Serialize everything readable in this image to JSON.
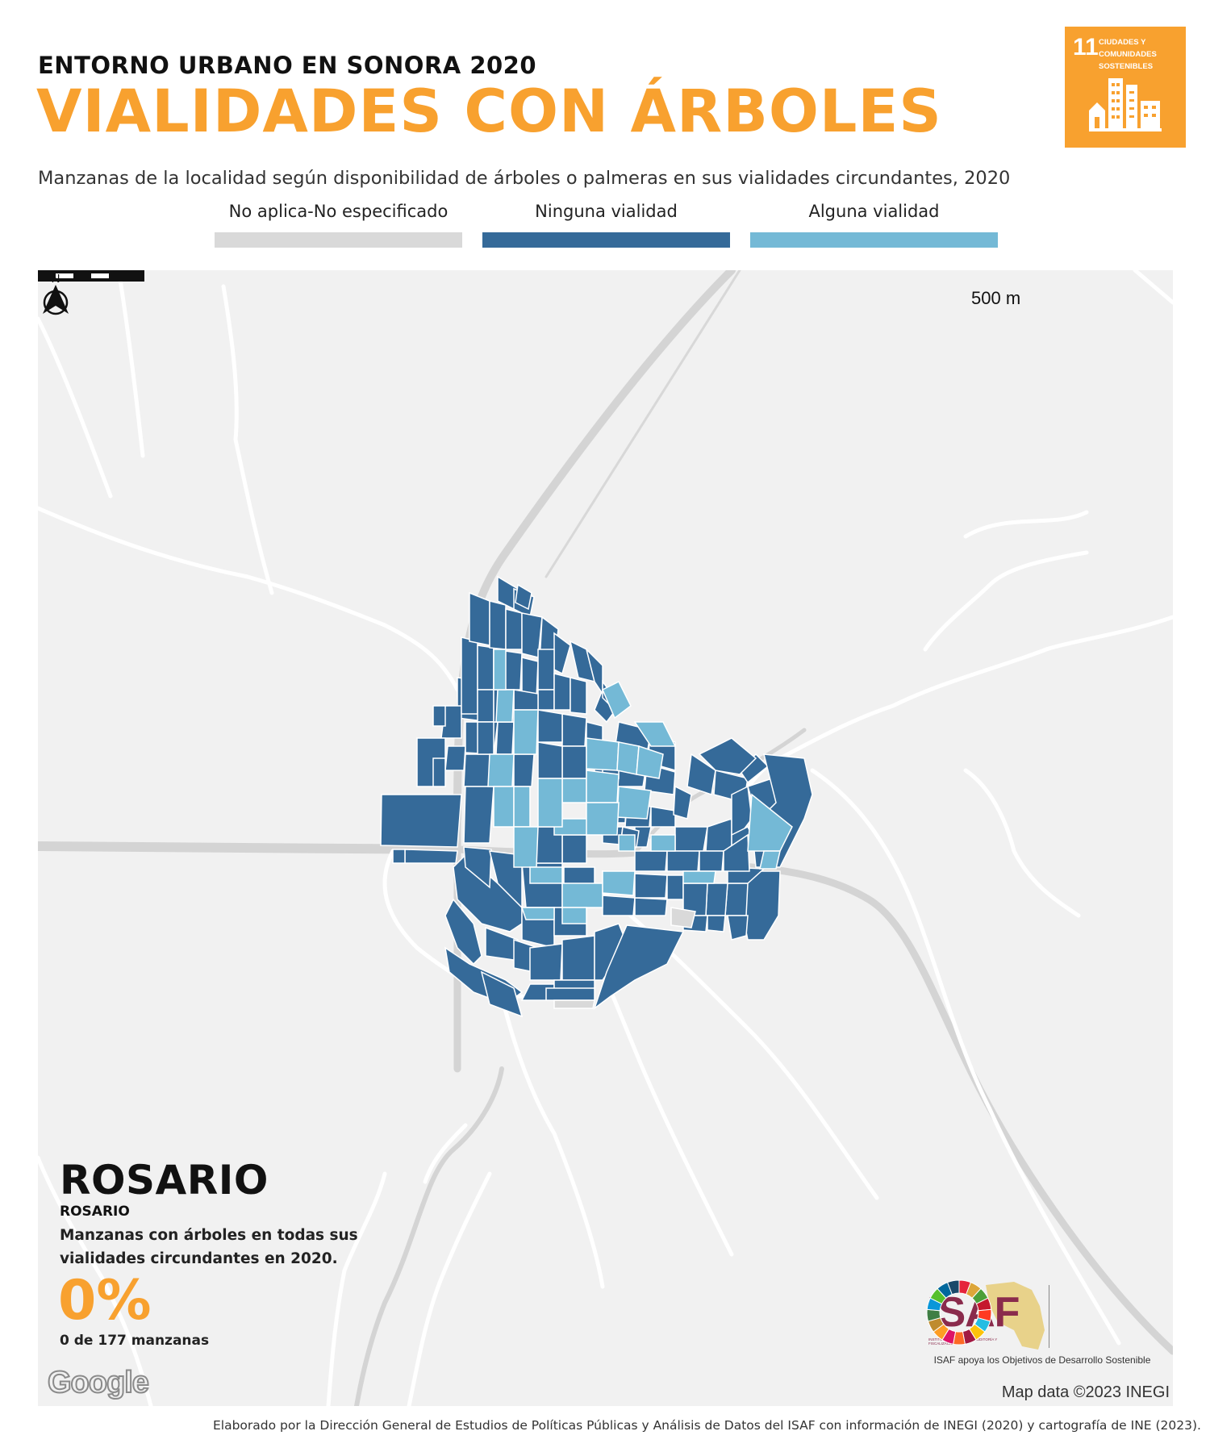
{
  "header": {
    "kicker": "ENTORNO URBANO EN SONORA 2020",
    "title": "VIALIDADES CON ÁRBOLES",
    "subtitle": "Manzanas de la localidad según disponibilidad de árboles o palmeras en sus vialidades circundantes, 2020"
  },
  "sdg_badge": {
    "number": "11",
    "text": "CIUDADES Y COMUNIDADES SOSTENIBLES",
    "color": "#f8a12f"
  },
  "legend": [
    {
      "label": "No aplica-No especificado",
      "color": "#d9d9d9"
    },
    {
      "label": "Ninguna vialidad",
      "color": "#356a99"
    },
    {
      "label": "Alguna vialidad",
      "color": "#74b9d6"
    }
  ],
  "map": {
    "scale_label": "500 m",
    "north_label": "N",
    "background_color": "#f1f1f1",
    "road_color": "#ffffff",
    "highway_color": "#d4d4d4",
    "attribution": "Map data ©2023 INEGI",
    "provider_logo": "Google"
  },
  "locality": {
    "name": "ROSARIO",
    "municipality": "ROSARIO",
    "stat_description": "Manzanas con árboles en todas sus vialidades circundantes en 2020.",
    "percentage": "0%",
    "count_text": "0 de 177 manzanas"
  },
  "branding": {
    "isaf_word": "ISAF",
    "isaf_fullname": "Instituto Superior de Auditoría y Fiscalización",
    "caption": "ISAF apoya los Objetivos de Desarrollo Sostenible"
  },
  "footer": {
    "credit": "Elaborado por la Dirección General de Estudios de Políticas Públicas y Análisis de Datos del ISAF con información de INEGI (2020) y cartografía de INE (2023)."
  }
}
